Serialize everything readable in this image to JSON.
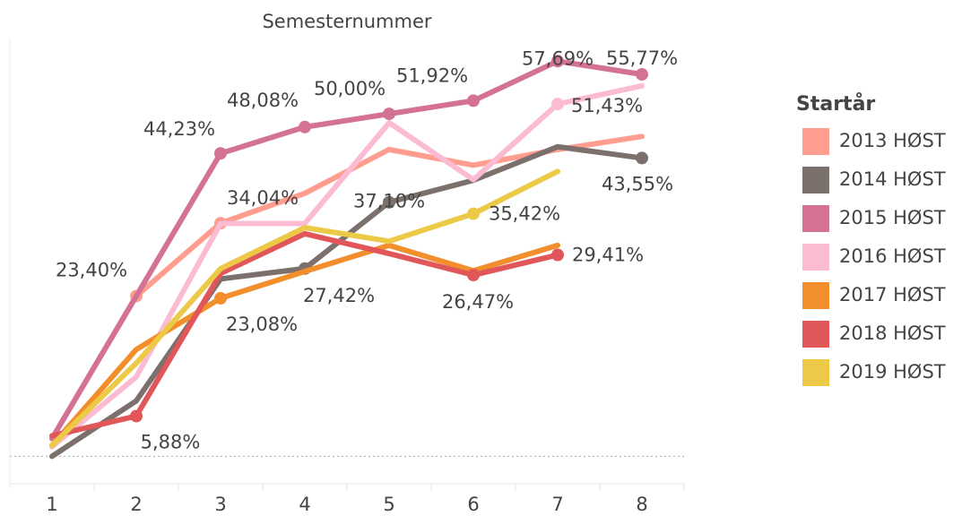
{
  "chart_data": {
    "type": "line",
    "title": "Semesternummer",
    "legend_title": "Startår",
    "categories": [
      "1",
      "2",
      "3",
      "4",
      "5",
      "6",
      "7",
      "8"
    ],
    "ylim": [
      -4,
      61
    ],
    "series": [
      {
        "name": "2013 HØST",
        "color": "#ff9d8f",
        "values": [
          2.6,
          23.4,
          34.04,
          38.4,
          44.8,
          42.5,
          44.8,
          46.7
        ],
        "value_labels": [
          null,
          "23,40%",
          "34,04%",
          null,
          null,
          null,
          null,
          null
        ]
      },
      {
        "name": "2014 HØST",
        "color": "#7b706c",
        "values": [
          0,
          8.1,
          25.9,
          27.42,
          37.1,
          40.3,
          45.2,
          43.55
        ],
        "value_labels": [
          null,
          null,
          null,
          "27,42%",
          "37,10%",
          null,
          null,
          "43,55%"
        ]
      },
      {
        "name": "2015 HØST",
        "color": "#d37295",
        "values": [
          2.6,
          23.4,
          44.23,
          48.08,
          50.0,
          51.92,
          57.69,
          55.77
        ],
        "value_labels": [
          null,
          null,
          "44,23%",
          "48,08%",
          "50,00%",
          "51,92%",
          "57,69%",
          "55,77%"
        ]
      },
      {
        "name": "2016 HØST",
        "color": "#fbbcd3",
        "values": [
          1.4,
          11.6,
          34.0,
          34.0,
          48.7,
          40.4,
          51.43,
          54.1
        ],
        "value_labels": [
          null,
          null,
          null,
          null,
          null,
          null,
          "51,43%",
          null
        ]
      },
      {
        "name": "2017 HØST",
        "color": "#f28e2b",
        "values": [
          1.6,
          15.6,
          23.08,
          27.0,
          30.8,
          27.1,
          30.8,
          null
        ],
        "value_labels": [
          null,
          null,
          "23,08%",
          null,
          null,
          null,
          null,
          null
        ]
      },
      {
        "name": "2018 HØST",
        "color": "#e15759",
        "values": [
          3.0,
          5.88,
          26.7,
          32.5,
          29.6,
          26.47,
          29.41,
          null
        ],
        "value_labels": [
          null,
          "5,88%",
          null,
          null,
          null,
          "26,47%",
          "29,41%",
          null
        ]
      },
      {
        "name": "2019 HØST",
        "color": "#edc948",
        "values": [
          1.6,
          13.6,
          27.4,
          33.4,
          31.4,
          35.42,
          41.6,
          null
        ],
        "value_labels": [
          null,
          null,
          null,
          null,
          null,
          "35,42%",
          null,
          null
        ]
      }
    ]
  }
}
